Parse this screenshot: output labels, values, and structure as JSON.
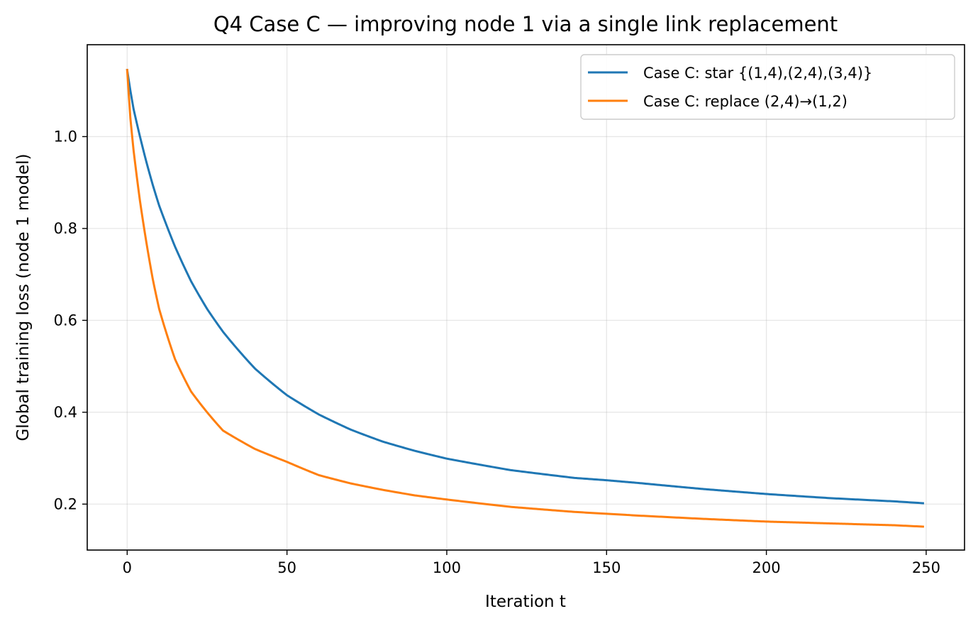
{
  "chart_data": {
    "type": "line",
    "title": "Q4 Case C — improving node 1 via a single link replacement",
    "xlabel": "Iteration t",
    "ylabel": "Global training loss (node 1 model)",
    "xlim": [
      -12.5,
      262
    ],
    "ylim": [
      0.1,
      1.2
    ],
    "xticks": [
      0,
      50,
      100,
      150,
      200,
      250
    ],
    "yticks": [
      0.2,
      0.4,
      0.6,
      0.8,
      1.0
    ],
    "xtick_labels": [
      "0",
      "50",
      "100",
      "150",
      "200",
      "250"
    ],
    "ytick_labels": [
      "0.2",
      "0.4",
      "0.6",
      "0.8",
      "1.0"
    ],
    "grid": true,
    "legend_position": "top-right",
    "series": [
      {
        "name": "Case C: star {(1,4),(2,4),(3,4)}",
        "color": "#1f77b4",
        "x": [
          0,
          1,
          2,
          4,
          6,
          8,
          10,
          15,
          20,
          25,
          30,
          40,
          50,
          60,
          70,
          80,
          90,
          100,
          120,
          140,
          150,
          160,
          180,
          200,
          220,
          240,
          249
        ],
        "y": [
          1.145,
          1.1,
          1.06,
          1.0,
          0.945,
          0.895,
          0.85,
          0.76,
          0.685,
          0.625,
          0.575,
          0.495,
          0.437,
          0.395,
          0.362,
          0.336,
          0.316,
          0.299,
          0.274,
          0.257,
          0.252,
          0.246,
          0.233,
          0.222,
          0.213,
          0.206,
          0.202
        ]
      },
      {
        "name": "Case C: replace (2,4)→(1,2)",
        "color": "#ff7f0e",
        "x": [
          0,
          1,
          2,
          4,
          6,
          8,
          10,
          15,
          20,
          25,
          30,
          40,
          50,
          60,
          70,
          80,
          90,
          100,
          120,
          140,
          150,
          160,
          180,
          200,
          220,
          240,
          249
        ],
        "y": [
          1.145,
          1.04,
          0.97,
          0.86,
          0.77,
          0.69,
          0.625,
          0.515,
          0.445,
          0.4,
          0.36,
          0.32,
          0.292,
          0.263,
          0.245,
          0.231,
          0.219,
          0.21,
          0.194,
          0.183,
          0.179,
          0.175,
          0.168,
          0.162,
          0.158,
          0.154,
          0.151
        ]
      }
    ]
  }
}
